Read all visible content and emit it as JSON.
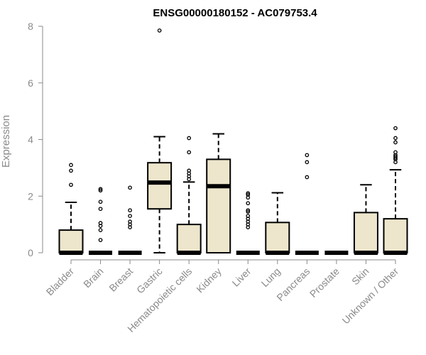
{
  "chart_data": {
    "type": "boxplot",
    "title": "ENSG00000180152 - AC079753.4",
    "xlabel": "",
    "ylabel": "Expression",
    "ylim": [
      0,
      8
    ],
    "yticks": [
      0,
      2,
      4,
      6,
      8
    ],
    "grid": false,
    "colors": {
      "box_fill": "#ede6cc",
      "box_stroke": "#000000",
      "axis": "#8a8a8a",
      "title": "#000000"
    },
    "categories": [
      "Bladder",
      "Brain",
      "Breast",
      "Gastric",
      "Hematopoietic cells",
      "Kidney",
      "Liver",
      "Lung",
      "Pancreas",
      "Prostate",
      "Skin",
      "Unknown / Other"
    ],
    "boxes": [
      {
        "category": "Bladder",
        "q1": 0,
        "median": 0,
        "q3": 0.8,
        "whisker_low": 0,
        "whisker_high": 1.78,
        "outliers": [
          2.4,
          2.9,
          3.1
        ]
      },
      {
        "category": "Brain",
        "q1": 0,
        "median": 0,
        "q3": 0,
        "whisker_low": 0,
        "whisker_high": 0,
        "outliers": [
          0.45,
          0.8,
          0.95,
          1.05,
          1.55,
          1.8,
          2.2,
          2.25
        ]
      },
      {
        "category": "Breast",
        "q1": 0,
        "median": 0,
        "q3": 0,
        "whisker_low": 0,
        "whisker_high": 0,
        "outliers": [
          0.9,
          1.0,
          1.1,
          1.3,
          1.5,
          2.3
        ]
      },
      {
        "category": "Gastric",
        "q1": 1.55,
        "median": 2.48,
        "q3": 3.18,
        "whisker_low": 0,
        "whisker_high": 4.1,
        "outliers": [
          7.85
        ]
      },
      {
        "category": "Hematopoietic cells",
        "q1": 0,
        "median": 0,
        "q3": 1.0,
        "whisker_low": 0,
        "whisker_high": 2.5,
        "outliers": [
          2.6,
          2.7,
          2.8,
          2.9,
          3.55,
          4.05
        ]
      },
      {
        "category": "Kidney",
        "q1": 0,
        "median": 2.35,
        "q3": 3.3,
        "whisker_low": 0,
        "whisker_high": 4.2,
        "outliers": []
      },
      {
        "category": "Liver",
        "q1": 0,
        "median": 0,
        "q3": 0,
        "whisker_low": 0,
        "whisker_high": 0,
        "outliers": [
          0.9,
          1.0,
          1.1,
          1.2,
          1.3,
          1.45,
          1.5,
          1.75,
          1.95,
          2.05,
          2.1
        ]
      },
      {
        "category": "Lung",
        "q1": 0,
        "median": 0,
        "q3": 1.07,
        "whisker_low": 0,
        "whisker_high": 2.12,
        "outliers": []
      },
      {
        "category": "Pancreas",
        "q1": 0,
        "median": 0,
        "q3": 0,
        "whisker_low": 0,
        "whisker_high": 0,
        "outliers": [
          2.67,
          3.2,
          3.45
        ]
      },
      {
        "category": "Prostate",
        "q1": 0,
        "median": 0,
        "q3": 0,
        "whisker_low": 0,
        "whisker_high": 0,
        "outliers": []
      },
      {
        "category": "Skin",
        "q1": 0,
        "median": 0,
        "q3": 1.42,
        "whisker_low": 0,
        "whisker_high": 2.4,
        "outliers": []
      },
      {
        "category": "Unknown / Other",
        "q1": 0,
        "median": 0,
        "q3": 1.2,
        "whisker_low": 0,
        "whisker_high": 2.93,
        "outliers": [
          3.2,
          3.3,
          3.35,
          3.4,
          3.45,
          3.55,
          3.9,
          4.05,
          4.4
        ]
      }
    ]
  }
}
